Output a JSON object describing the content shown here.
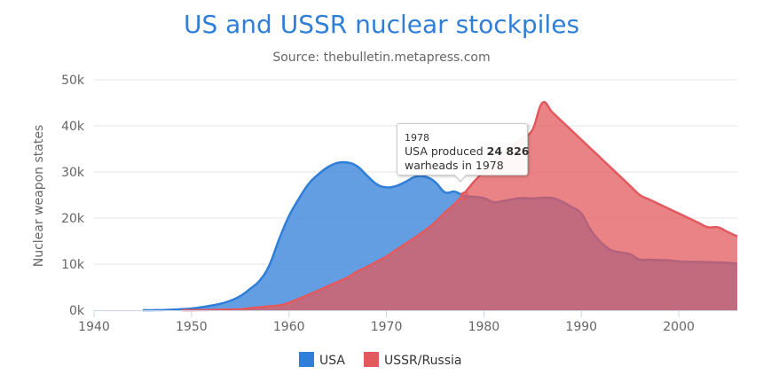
{
  "chart_data": {
    "type": "area",
    "title": "US and USSR nuclear stockpiles",
    "subtitle": "Source: thebulletin.metapress.com",
    "ylabel": "Nuclear weapon states",
    "xlim": [
      1940,
      2006
    ],
    "ylim": [
      0,
      50000
    ],
    "x_ticks": [
      "1940",
      "1950",
      "1960",
      "1970",
      "1980",
      "1990",
      "2000"
    ],
    "y_ticks": [
      "0k",
      "10k",
      "20k",
      "30k",
      "40k",
      "50k"
    ],
    "grid": true,
    "legend_position": "bottom-center",
    "colors": {
      "USA": "#2f7ed8",
      "USSR/Russia": "#e2595e"
    },
    "series": [
      {
        "name": "USA",
        "x": [
          1945,
          1946,
          1947,
          1948,
          1949,
          1950,
          1951,
          1952,
          1953,
          1954,
          1955,
          1956,
          1957,
          1958,
          1959,
          1960,
          1961,
          1962,
          1963,
          1964,
          1965,
          1966,
          1967,
          1968,
          1969,
          1970,
          1971,
          1972,
          1973,
          1974,
          1975,
          1976,
          1977,
          1978,
          1979,
          1980,
          1981,
          1982,
          1983,
          1984,
          1985,
          1986,
          1987,
          1988,
          1989,
          1990,
          1991,
          1992,
          1993,
          1994,
          1995,
          1996,
          1997,
          1998,
          1999,
          2000,
          2001,
          2002,
          2003,
          2004,
          2005,
          2006
        ],
        "values": [
          6,
          11,
          32,
          110,
          235,
          369,
          640,
          1005,
          1436,
          2063,
          3057,
          4618,
          6444,
          9822,
          15468,
          20434,
          24126,
          27387,
          29459,
          31056,
          31982,
          32040,
          31233,
          29224,
          27342,
          26662,
          26956,
          27912,
          28999,
          28965,
          27826,
          25579,
          25722,
          24826,
          24605,
          24304,
          23464,
          23708,
          24099,
          24357,
          24237,
          24401,
          24344,
          23586,
          22380,
          21004,
          17287,
          14747,
          13076,
          12555,
          12144,
          11009,
          10953,
          10871,
          10824,
          10577,
          10527,
          10475,
          10421,
          10358,
          10295,
          10104
        ]
      },
      {
        "name": "USSR/Russia",
        "x": [
          1949,
          1950,
          1951,
          1952,
          1953,
          1954,
          1955,
          1956,
          1957,
          1958,
          1959,
          1960,
          1961,
          1962,
          1963,
          1964,
          1965,
          1966,
          1967,
          1968,
          1969,
          1970,
          1971,
          1972,
          1973,
          1974,
          1975,
          1976,
          1977,
          1978,
          1979,
          1980,
          1981,
          1982,
          1983,
          1984,
          1985,
          1986,
          1987,
          1988,
          1989,
          1990,
          1991,
          1992,
          1993,
          1994,
          1995,
          1996,
          1997,
          1998,
          1999,
          2000,
          2001,
          2002,
          2003,
          2004,
          2005,
          2006
        ],
        "values": [
          1,
          5,
          25,
          50,
          120,
          150,
          200,
          426,
          660,
          863,
          1048,
          1627,
          2492,
          3346,
          4259,
          5242,
          6144,
          7091,
          8400,
          9399,
          10538,
          11643,
          13092,
          14478,
          15915,
          17385,
          19055,
          21205,
          23044,
          25393,
          27935,
          30062,
          32049,
          33952,
          35804,
          37431,
          39197,
          45000,
          43000,
          41000,
          39000,
          37000,
          35000,
          33000,
          31000,
          29000,
          27000,
          25000,
          24000,
          23000,
          22000,
          21000,
          20000,
          19000,
          18000,
          18000,
          17000,
          16000
        ]
      }
    ],
    "tooltip": {
      "year": "1978",
      "prefix": "USA produced ",
      "value": "24 826",
      "suffix": "warheads in 1978"
    }
  }
}
